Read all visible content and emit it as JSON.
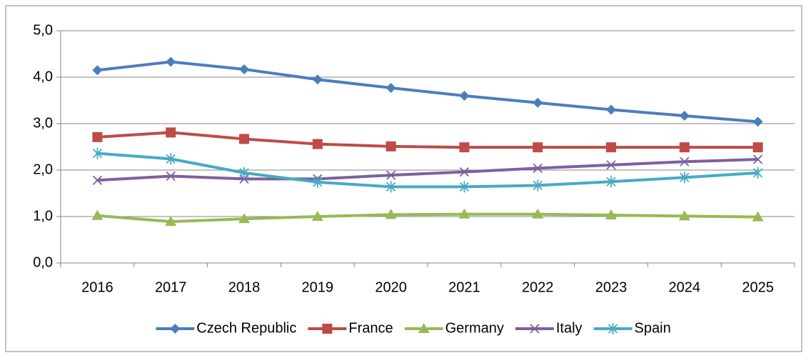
{
  "chart_data": {
    "type": "line",
    "categories": [
      "2016",
      "2017",
      "2018",
      "2019",
      "2020",
      "2021",
      "2022",
      "2023",
      "2024",
      "2025"
    ],
    "series": [
      {
        "name": "Czech Republic",
        "color": "#4a7ebb",
        "marker": "diamond",
        "values": [
          4.15,
          4.33,
          4.17,
          3.95,
          3.77,
          3.6,
          3.45,
          3.3,
          3.17,
          3.04
        ]
      },
      {
        "name": "France",
        "color": "#be4b48",
        "marker": "square",
        "values": [
          2.71,
          2.81,
          2.67,
          2.56,
          2.51,
          2.49,
          2.49,
          2.49,
          2.49,
          2.49
        ]
      },
      {
        "name": "Germany",
        "color": "#98b954",
        "marker": "triangle",
        "values": [
          1.02,
          0.89,
          0.95,
          1.0,
          1.04,
          1.05,
          1.05,
          1.03,
          1.01,
          0.99
        ]
      },
      {
        "name": "Italy",
        "color": "#7d60a0",
        "marker": "x",
        "values": [
          1.78,
          1.87,
          1.81,
          1.81,
          1.89,
          1.96,
          2.04,
          2.11,
          2.18,
          2.23
        ]
      },
      {
        "name": "Spain",
        "color": "#46aac5",
        "marker": "star",
        "values": [
          2.36,
          2.24,
          1.94,
          1.74,
          1.64,
          1.64,
          1.67,
          1.75,
          1.84,
          1.94
        ]
      }
    ],
    "ylim": [
      0,
      5
    ],
    "yticks": [
      {
        "value": 0,
        "label": "0,0"
      },
      {
        "value": 1,
        "label": "1,0"
      },
      {
        "value": 2,
        "label": "2,0"
      },
      {
        "value": 3,
        "label": "3,0"
      },
      {
        "value": 4,
        "label": "4,0"
      },
      {
        "value": 5,
        "label": "5,0"
      }
    ],
    "grid": true,
    "legend": "bottom"
  }
}
